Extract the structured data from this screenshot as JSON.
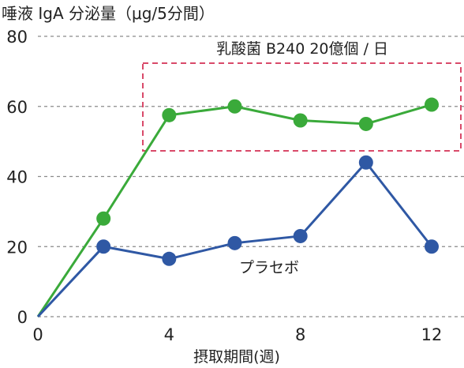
{
  "chart_data": {
    "type": "line",
    "ylabel": "唾液 IgA 分泌量（μg/5分間）",
    "xlabel": "摂取期間(週)",
    "xticks": [
      0,
      4,
      8,
      12
    ],
    "yticks": [
      0,
      20,
      40,
      60,
      80
    ],
    "xlim": [
      0,
      13
    ],
    "ylim": [
      0,
      80
    ],
    "grid": "horizontal-dashed",
    "series": [
      {
        "name": "乳酸菌 B240 20億個 / 日",
        "color": "#3aaa3a",
        "x": [
          0,
          2,
          4,
          6,
          8,
          10,
          12
        ],
        "values": [
          0,
          28,
          57.5,
          60,
          56,
          55,
          60.5
        ]
      },
      {
        "name": "プラセボ",
        "color": "#2f58a4",
        "x": [
          0,
          2,
          4,
          6,
          8,
          10,
          12
        ],
        "values": [
          0,
          20,
          16.5,
          21,
          23,
          44,
          20
        ]
      }
    ],
    "highlight_box": {
      "color": "#d94a6a",
      "style": "dashed"
    }
  }
}
